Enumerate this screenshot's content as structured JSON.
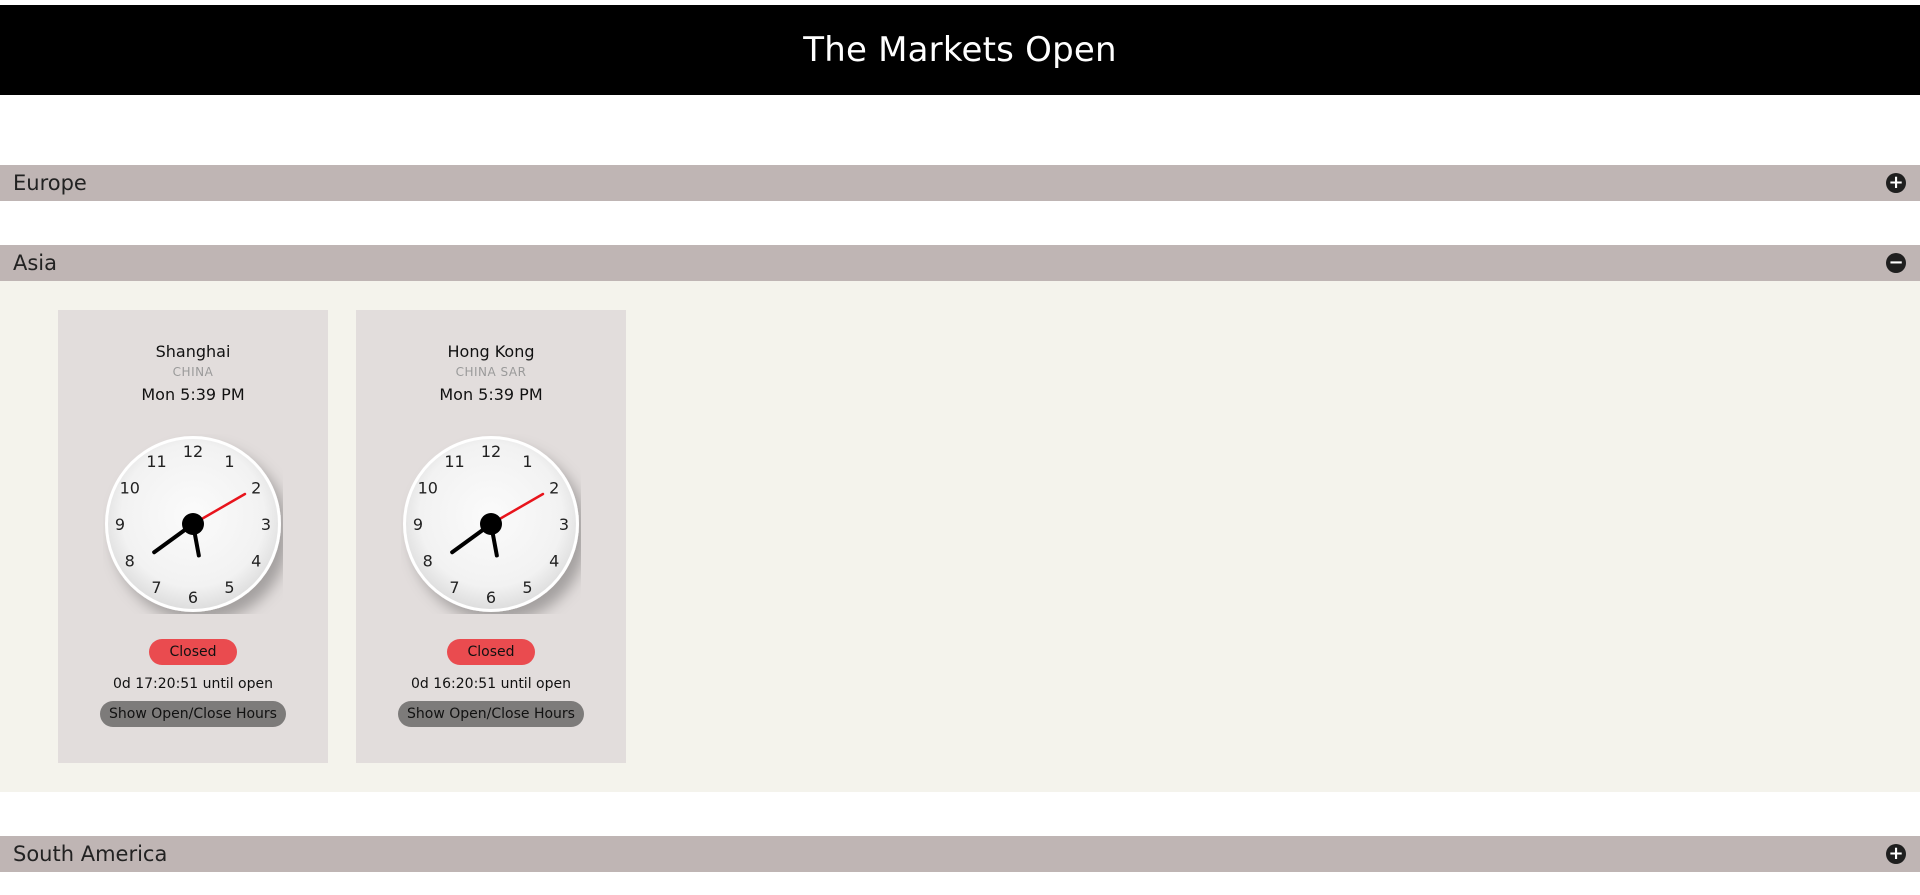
{
  "header": {
    "title": "The Markets Open"
  },
  "regions": {
    "europe": {
      "label": "Europe",
      "toggle": "+"
    },
    "asia": {
      "label": "Asia",
      "toggle": "−"
    },
    "south_america": {
      "label": "South America",
      "toggle": "+"
    }
  },
  "markets": [
    {
      "city": "Shanghai",
      "country": "CHINA",
      "local_time": "Mon 5:39 PM",
      "clock": {
        "hour": 5,
        "minute": 39,
        "second": 10
      },
      "status": "Closed",
      "countdown": "0d 17:20:51 until open",
      "hours_button": "Show Open/Close Hours"
    },
    {
      "city": "Hong Kong",
      "country": "CHINA SAR",
      "local_time": "Mon 5:39 PM",
      "clock": {
        "hour": 5,
        "minute": 39,
        "second": 10
      },
      "status": "Closed",
      "countdown": "0d 16:20:51 until open",
      "hours_button": "Show Open/Close Hours"
    }
  ],
  "clock_numerals": [
    "12",
    "1",
    "2",
    "3",
    "4",
    "5",
    "6",
    "7",
    "8",
    "9",
    "10",
    "11"
  ],
  "colors": {
    "header_bg": "#000000",
    "region_bar": "#bfb5b4",
    "region_body": "#f4f3ec",
    "card_bg": "#e2dddc",
    "closed_badge": "#ea4b4f",
    "second_hand": "#e8141c",
    "hours_button": "#7d7b7a"
  },
  "icons": {
    "expand": "plus-circle-icon",
    "collapse": "minus-circle-icon"
  }
}
